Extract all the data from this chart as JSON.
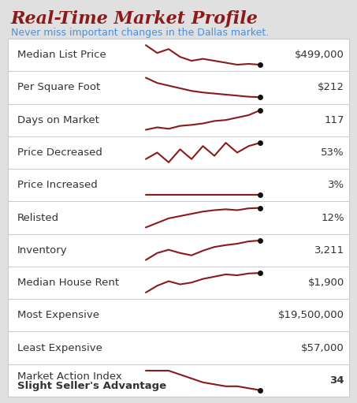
{
  "title": "Real-Time Market Profile",
  "subtitle": "Never miss important changes in the Dallas market.",
  "title_color": "#8B1A1A",
  "subtitle_color": "#4a90d9",
  "background_color": "#e0e0e0",
  "table_bg": "#ffffff",
  "line_color": "#8B1A1A",
  "dot_color": "#111111",
  "separator_color": "#cccccc",
  "label_color": "#333333",
  "value_color": "#333333",
  "rows": [
    {
      "label": "Median List Price",
      "value": "$499,000",
      "value_bold": false,
      "sublabel": "",
      "has_sparkline": true,
      "sparkline": [
        10,
        8,
        9,
        7,
        6,
        6.5,
        6,
        5.5,
        5,
        5.2,
        5
      ]
    },
    {
      "label": "Per Square Foot",
      "value": "$212",
      "value_bold": false,
      "sublabel": "",
      "has_sparkline": true,
      "sparkline": [
        8,
        7,
        6.5,
        6,
        5.5,
        5.2,
        5,
        4.8,
        4.6,
        4.4,
        4.3
      ]
    },
    {
      "label": "Days on Market",
      "value": "117",
      "value_bold": false,
      "sublabel": "",
      "has_sparkline": true,
      "sparkline": [
        3,
        3.5,
        3.2,
        3.8,
        4,
        4.3,
        4.8,
        5,
        5.5,
        6,
        7
      ]
    },
    {
      "label": "Price Decreased",
      "value": "53%",
      "value_bold": false,
      "sublabel": "",
      "has_sparkline": true,
      "sparkline": [
        3,
        5,
        2,
        6,
        3,
        7,
        4,
        8,
        5,
        7,
        8
      ]
    },
    {
      "label": "Price Increased",
      "value": "3%",
      "value_bold": false,
      "sublabel": "",
      "has_sparkline": true,
      "sparkline": [
        5,
        5,
        5,
        5,
        5,
        5,
        5,
        5,
        5,
        5,
        5
      ]
    },
    {
      "label": "Relisted",
      "value": "12%",
      "value_bold": false,
      "sublabel": "",
      "has_sparkline": true,
      "sparkline": [
        3,
        4,
        5,
        5.5,
        6,
        6.5,
        6.8,
        7,
        6.8,
        7.2,
        7.3
      ]
    },
    {
      "label": "Inventory",
      "value": "3,211",
      "value_bold": false,
      "sublabel": "",
      "has_sparkline": true,
      "sparkline": [
        3,
        4.5,
        5.2,
        4.5,
        4,
        5,
        5.8,
        6.2,
        6.5,
        7,
        7.2
      ]
    },
    {
      "label": "Median House Rent",
      "value": "$1,900",
      "value_bold": false,
      "sublabel": "",
      "has_sparkline": true,
      "sparkline": [
        2,
        3.5,
        4.5,
        3.8,
        4.2,
        5,
        5.5,
        6,
        5.8,
        6.2,
        6.3
      ]
    },
    {
      "label": "Most Expensive",
      "value": "$19,500,000",
      "value_bold": false,
      "sublabel": "",
      "has_sparkline": false,
      "sparkline": []
    },
    {
      "label": "Least Expensive",
      "value": "$57,000",
      "value_bold": false,
      "sublabel": "",
      "has_sparkline": false,
      "sparkline": []
    },
    {
      "label": "Market Action Index",
      "value": "34",
      "value_bold": true,
      "sublabel": "Slight Seller's Advantage",
      "has_sparkline": true,
      "sparkline": [
        9,
        9,
        9,
        8,
        7,
        6,
        5.5,
        5,
        5,
        4.5,
        4
      ]
    }
  ]
}
